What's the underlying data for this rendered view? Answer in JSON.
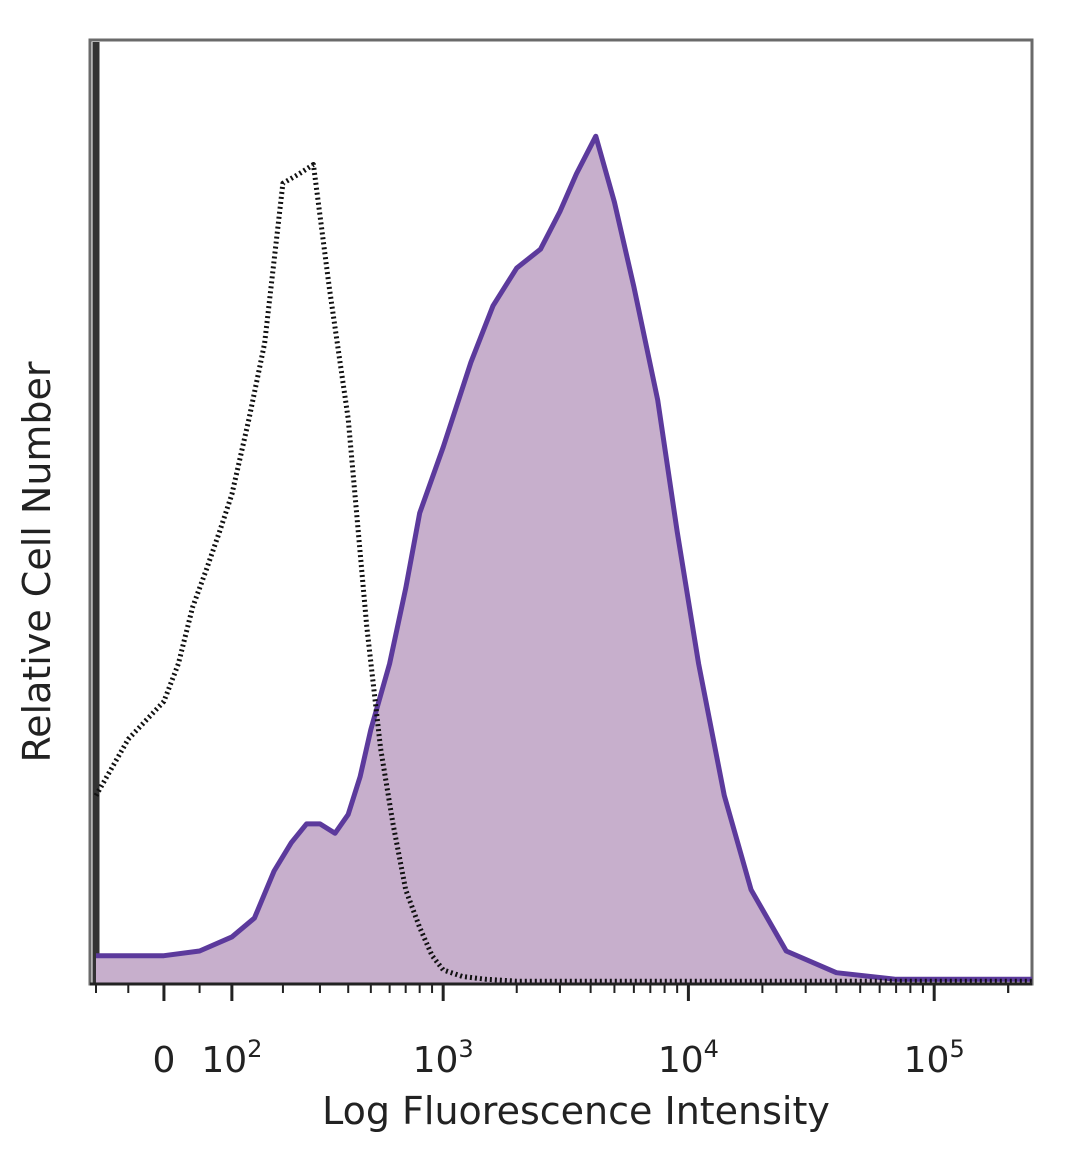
{
  "chart_data": {
    "type": "area",
    "title": "",
    "xlabel": "Log Fluorescence Intensity",
    "ylabel": "Relative Cell Number",
    "x_scale": "biexponential",
    "xlim": [
      -100,
      250000
    ],
    "ylim": [
      0,
      100
    ],
    "x_ticks": [
      {
        "value": 0,
        "label": "0"
      },
      {
        "value": 100,
        "label": "10",
        "sup": "2"
      },
      {
        "value": 1000,
        "label": "10",
        "sup": "3"
      },
      {
        "value": 10000,
        "label": "10",
        "sup": "4"
      },
      {
        "value": 100000,
        "label": "10",
        "sup": "5"
      }
    ],
    "grid": false,
    "legend": "none",
    "series": [
      {
        "style": "dotted-line",
        "color": "#111111",
        "x": [
          -100,
          -50,
          0,
          20,
          40,
          60,
          80,
          100,
          130,
          160,
          200,
          240,
          280,
          330,
          400,
          480,
          550,
          620,
          700,
          800,
          900,
          1000,
          1200,
          1500,
          2000,
          5000,
          20000,
          250000
        ],
        "y": [
          20,
          26,
          30,
          34,
          40,
          44,
          48,
          52,
          60,
          68,
          85,
          86,
          87,
          74,
          60,
          38,
          25,
          17,
          10,
          6,
          3,
          1.5,
          0.8,
          0.5,
          0.3,
          0.3,
          0.3,
          0.3
        ]
      },
      {
        "style": "filled-line",
        "color": "#5c3a9c",
        "fill": "#c7afcc",
        "x": [
          -100,
          0,
          50,
          100,
          140,
          180,
          220,
          260,
          300,
          350,
          400,
          450,
          500,
          600,
          700,
          800,
          1000,
          1300,
          1600,
          2000,
          2500,
          3000,
          3500,
          4200,
          5000,
          6000,
          7500,
          9000,
          11000,
          14000,
          18000,
          25000,
          40000,
          70000,
          250000
        ],
        "y": [
          3,
          3,
          3.5,
          5,
          7,
          12,
          15,
          17,
          17,
          16,
          18,
          22,
          27,
          34,
          42,
          50,
          57,
          66,
          72,
          76,
          78,
          82,
          86,
          90,
          83,
          74,
          62,
          48,
          34,
          20,
          10,
          3.5,
          1.2,
          0.5,
          0.5
        ]
      }
    ]
  }
}
